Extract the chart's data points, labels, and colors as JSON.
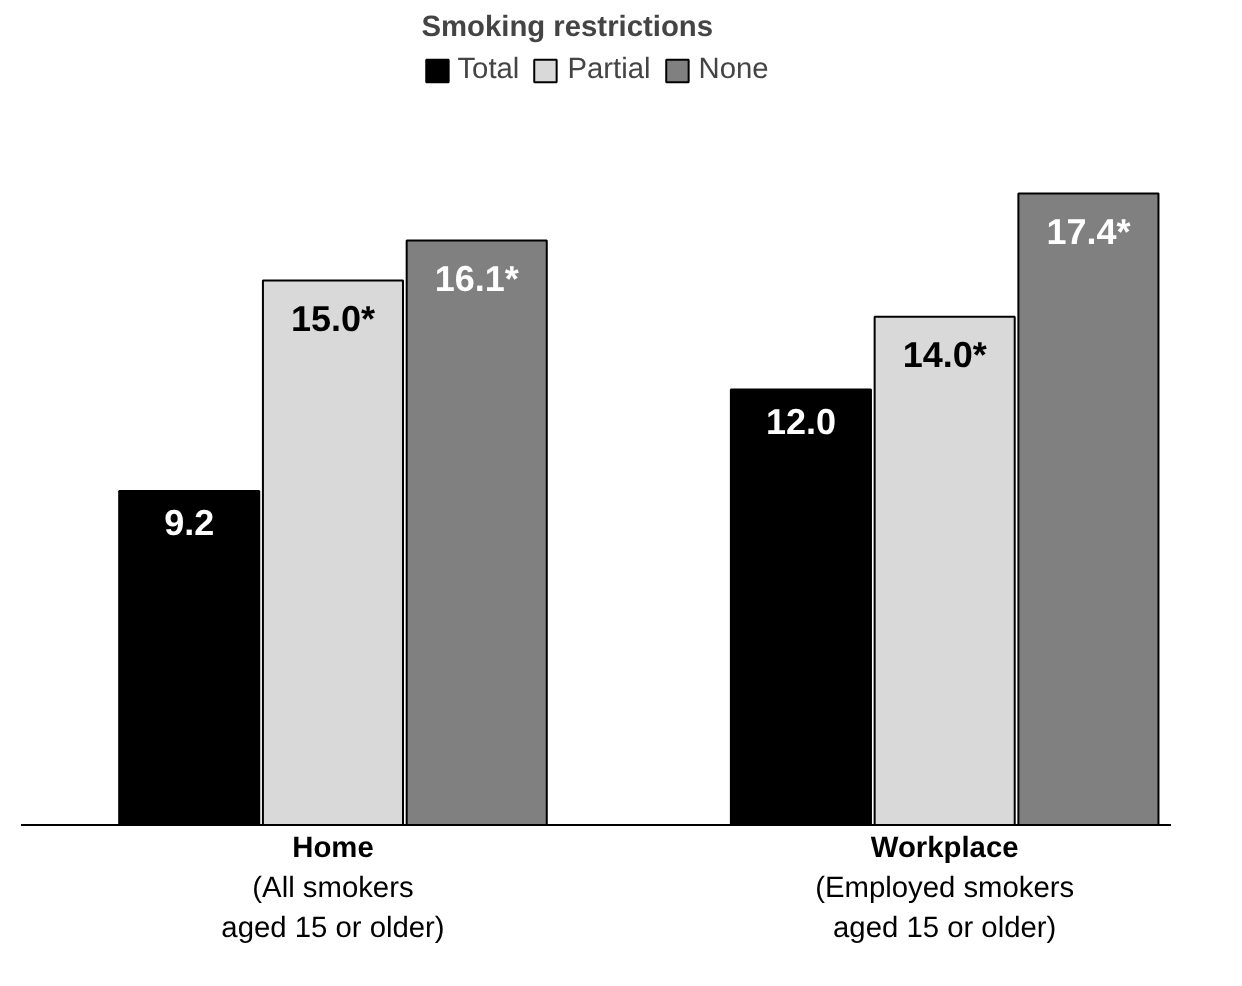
{
  "chart_data": {
    "type": "bar",
    "legend_title": "Smoking restrictions",
    "legend": "top",
    "categories": [
      "Home\n(All smokers\naged 15 or older)",
      "Workplace\n(Employed smokers\naged 15 or older)"
    ],
    "series": [
      {
        "name": "Total",
        "color": "#000000",
        "values": [
          9.2,
          12.0
        ],
        "value_labels": [
          "9.2",
          "12.0"
        ]
      },
      {
        "name": "Partial",
        "color": "#d9d9d9",
        "values": [
          15.0,
          14.0
        ],
        "value_labels": [
          "15.0*",
          "14.0*"
        ]
      },
      {
        "name": "None",
        "color": "#808080",
        "values": [
          16.1,
          17.4
        ],
        "value_labels": [
          "16.1*",
          "17.4*"
        ]
      }
    ]
  }
}
